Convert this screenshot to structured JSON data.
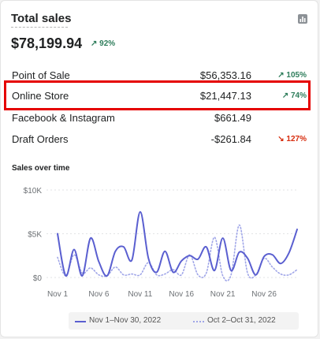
{
  "card": {
    "title": "Total sales",
    "total": "$78,199.94",
    "total_change": "↗ 92%",
    "chart_icon": "bar-chart-icon"
  },
  "rows": [
    {
      "name": "Point of Sale",
      "value": "$56,353.16",
      "change": "↗ 105%",
      "trend": "up"
    },
    {
      "name": "Online Store",
      "value": "$21,447.13",
      "change": "↗ 74%",
      "trend": "up"
    },
    {
      "name": "Facebook & Instagram",
      "value": "$661.49",
      "change": "",
      "trend": ""
    },
    {
      "name": "Draft Orders",
      "value": "-$261.84",
      "change": "↘ 127%",
      "trend": "down"
    }
  ],
  "sales_over_time": {
    "title": "Sales over time",
    "legend": [
      "Nov 1–Nov 30, 2022",
      "Oct 2–Oct 31, 2022"
    ]
  },
  "chart_data": {
    "type": "line",
    "x": [
      "Nov 1",
      "Nov 2",
      "Nov 3",
      "Nov 4",
      "Nov 5",
      "Nov 6",
      "Nov 7",
      "Nov 8",
      "Nov 9",
      "Nov 10",
      "Nov 11",
      "Nov 12",
      "Nov 13",
      "Nov 14",
      "Nov 15",
      "Nov 16",
      "Nov 17",
      "Nov 18",
      "Nov 19",
      "Nov 20",
      "Nov 21",
      "Nov 22",
      "Nov 23",
      "Nov 24",
      "Nov 25",
      "Nov 26",
      "Nov 27",
      "Nov 28",
      "Nov 29",
      "Nov 30"
    ],
    "tick_labels": [
      "Nov 1",
      "Nov 6",
      "Nov 11",
      "Nov 16",
      "Nov 21",
      "Nov 26"
    ],
    "y_ticks": [
      "$0",
      "$5K",
      "$10K"
    ],
    "ylim": [
      0,
      10000
    ],
    "series": [
      {
        "name": "Nov 1–Nov 30, 2022",
        "color": "#5a5fd0",
        "style": "solid",
        "values": [
          5000,
          200,
          3200,
          200,
          4500,
          1800,
          200,
          3000,
          3500,
          2000,
          7500,
          2200,
          600,
          3000,
          600,
          1900,
          2500,
          2100,
          3500,
          800,
          4500,
          800,
          2900,
          2200,
          300,
          2400,
          2600,
          1600,
          2800,
          5500
        ]
      },
      {
        "name": "Oct 2–Oct 31, 2022",
        "color": "#a0a6e8",
        "style": "dotted",
        "values": [
          2300,
          200,
          2600,
          500,
          1100,
          300,
          200,
          1200,
          300,
          400,
          300,
          1700,
          300,
          400,
          900,
          300,
          2600,
          300,
          500,
          4600,
          200,
          300,
          6000,
          500,
          300,
          2200,
          1200,
          400,
          300,
          900
        ]
      }
    ]
  }
}
